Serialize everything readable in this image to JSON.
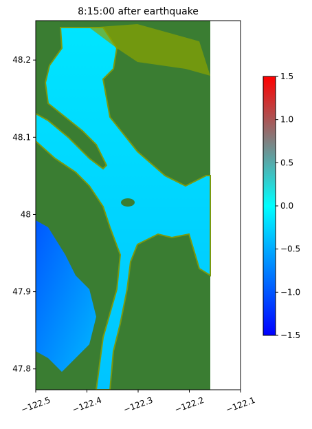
{
  "chart_data": {
    "type": "map",
    "title": "8:15:00 after earthquake",
    "xlim": [
      -122.5,
      -122.1
    ],
    "xticks": [
      {
        "value": -122.5,
        "label": "−122.5"
      },
      {
        "value": -122.4,
        "label": "−122.4"
      },
      {
        "value": -122.3,
        "label": "−122.3"
      },
      {
        "value": -122.2,
        "label": "−122.2"
      },
      {
        "value": -122.1,
        "label": "−122.1"
      }
    ],
    "ylim": [
      47.773,
      48.251
    ],
    "yticks": [
      47.8,
      47.9,
      48.0,
      48.1,
      48.2
    ],
    "colorbar": {
      "ylim": [
        -1.5,
        1.5
      ],
      "yticks": [
        {
          "value": -1.5,
          "label": "−1.5"
        },
        {
          "value": -1.0,
          "label": "−1.0"
        },
        {
          "value": -0.5,
          "label": "−0.5"
        },
        {
          "value": 0,
          "label": "0.0"
        },
        0.5,
        {
          "value": 1.0,
          "label": "1.0"
        },
        1.5
      ],
      "colors": [
        "#0000ff",
        "#0080ff",
        "#00ffff",
        "#808080",
        "#ff0000"
      ]
    }
  }
}
